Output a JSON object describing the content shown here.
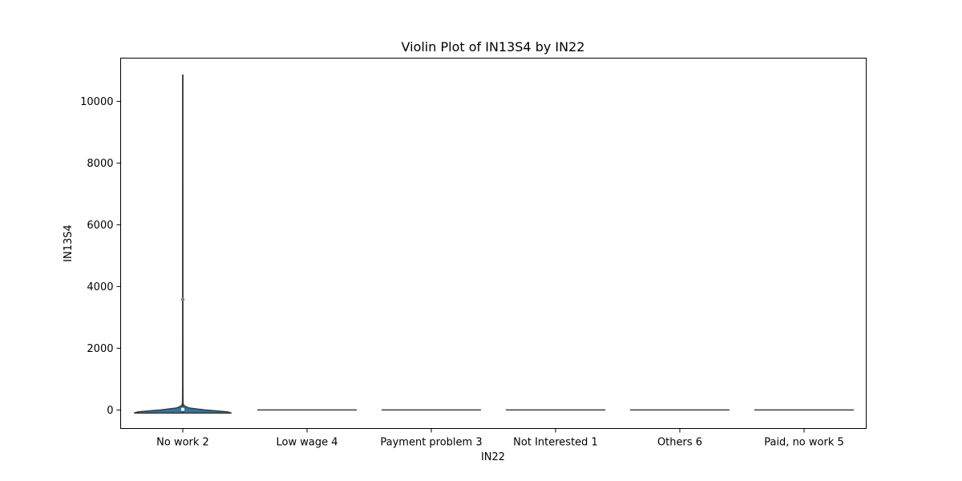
{
  "chart_data": {
    "type": "violin",
    "title": "Violin Plot of IN13S4 by IN22",
    "xlabel": "IN22",
    "ylabel": "IN13S4",
    "ylim": [
      -600,
      11400
    ],
    "yticks": [
      0,
      2000,
      4000,
      6000,
      8000,
      10000
    ],
    "ytick_labels": [
      "0",
      "2000",
      "4000",
      "6000",
      "8000",
      "10000"
    ],
    "categories": [
      "No work 2",
      "Low wage 4",
      "Payment problem 3",
      "Not Interested 1",
      "Others 6",
      "Paid, no work 5"
    ],
    "violins": [
      {
        "category": "No work 2",
        "min": -100,
        "max": 10850,
        "q1": 0,
        "median": 20,
        "q3": 60,
        "outlier_marker": 3580,
        "density_profile": [
          [
            -100,
            0.98
          ],
          [
            -60,
            0.9
          ],
          [
            -20,
            0.6
          ],
          [
            0,
            0.45
          ],
          [
            20,
            0.35
          ],
          [
            40,
            0.25
          ],
          [
            60,
            0.15
          ],
          [
            80,
            0.1
          ],
          [
            110,
            0.06
          ],
          [
            150,
            0.02
          ],
          [
            200,
            0.008
          ],
          [
            400,
            0.005
          ],
          [
            1000,
            0.003
          ],
          [
            10850,
            0.002
          ]
        ]
      },
      {
        "category": "Low wage 4",
        "min": 0,
        "max": 0,
        "median": 0
      },
      {
        "category": "Payment problem 3",
        "min": 0,
        "max": 0,
        "median": 0
      },
      {
        "category": "Not Interested 1",
        "min": 0,
        "max": 0,
        "median": 0
      },
      {
        "category": "Others 6",
        "min": 0,
        "max": 0,
        "median": 0
      },
      {
        "category": "Paid, no work 5",
        "min": 0,
        "max": 0,
        "median": 0
      }
    ],
    "colors": {
      "violin_fill": "#3274a1",
      "violin_edge": "#3d3d3d",
      "box": "#3d3d3d",
      "axes": "#000000"
    },
    "grid": false,
    "legend": "none"
  }
}
